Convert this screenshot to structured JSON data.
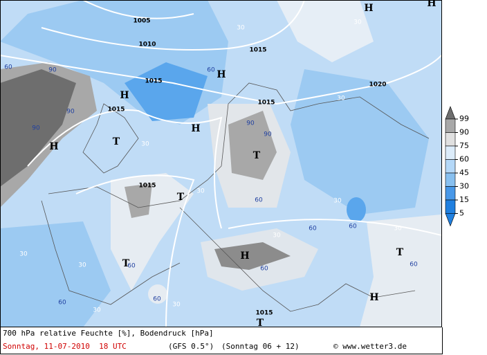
{
  "legend": {
    "labels": [
      99,
      90,
      75,
      60,
      45,
      30,
      15,
      5
    ]
  },
  "caption": {
    "line1": "700 hPa relative Feuchte [%], Bodendruck [hPa]",
    "date": "Sonntag, 11-07-2010  18 UTC",
    "model": "(GFS 0.5°)",
    "run": "(Sonntag 06 + 12)",
    "copyright": "© www.wetter3.de"
  },
  "map": {
    "labels": [
      "1005",
      "1010",
      "1015",
      "1015",
      "1015",
      "1015",
      "1015",
      "1015",
      "1020",
      "H",
      "H",
      "H",
      "H",
      "H",
      "H",
      "H",
      "H",
      "T",
      "T",
      "T",
      "T",
      "T",
      "T",
      "90",
      "90",
      "90",
      "90",
      "90",
      "60",
      "60",
      "30",
      "30",
      "30",
      "30",
      "30",
      "30",
      "60",
      "60",
      "60",
      "60",
      "60",
      "60",
      "60",
      "30",
      "30",
      "30",
      "30",
      "60",
      "30",
      "30"
    ]
  }
}
